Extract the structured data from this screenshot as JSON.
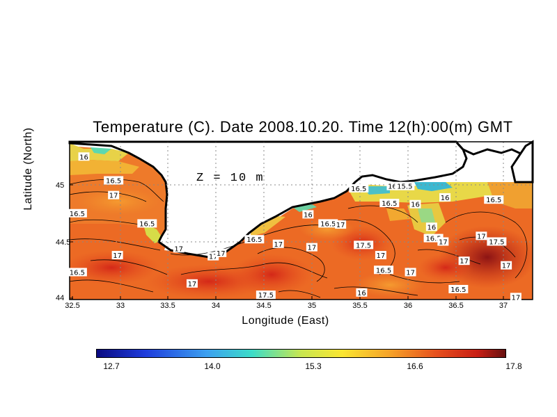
{
  "title": "Temperature (C). Date 2008.10.20. Time 12(h):00(m) GMT",
  "depth_label": "Z = 10 m",
  "xlabel": "Longitude (East)",
  "ylabel": "Latitude (North)",
  "colorbar": {
    "colors": [
      "#0a0a80",
      "#1e3cdc",
      "#3ca0f0",
      "#3cdcc8",
      "#c8e650",
      "#fae632",
      "#f5a028",
      "#e6501e",
      "#c81e14",
      "#641010"
    ],
    "labels": [
      "12.7",
      "14.0",
      "15.3",
      "16.6",
      "17.8"
    ]
  },
  "chart_data": {
    "type": "heatmap",
    "title": "Temperature (C). Date 2008.10.20. Time 12(h):00(m) GMT",
    "xlabel": "Longitude (East)",
    "ylabel": "Latitude (North)",
    "xlim": [
      32.5,
      37.25
    ],
    "ylim": [
      44.0,
      45.35
    ],
    "xticks": [
      "32.5",
      "33",
      "33.5",
      "34",
      "34.5",
      "35",
      "35.5",
      "36",
      "36.5",
      "37"
    ],
    "yticks": [
      "44",
      "44.5",
      "45"
    ],
    "grid": true,
    "colorbar_range": [
      12.7,
      17.8
    ],
    "colorbar_ticks": [
      12.7,
      14.0,
      15.3,
      16.6,
      17.8
    ],
    "contour_labels": [
      {
        "lon": 32.62,
        "lat": 45.25,
        "text": "16"
      },
      {
        "lon": 32.93,
        "lat": 45.04,
        "text": "16.5"
      },
      {
        "lon": 32.93,
        "lat": 44.91,
        "text": "17"
      },
      {
        "lon": 32.55,
        "lat": 44.75,
        "text": "16.5"
      },
      {
        "lon": 33.28,
        "lat": 44.66,
        "text": "16.5"
      },
      {
        "lon": 32.97,
        "lat": 44.38,
        "text": "17"
      },
      {
        "lon": 32.55,
        "lat": 44.23,
        "text": "16.5"
      },
      {
        "lon": 33.61,
        "lat": 44.44,
        "text": "17"
      },
      {
        "lon": 33.97,
        "lat": 44.37,
        "text": "17"
      },
      {
        "lon": 34.05,
        "lat": 44.4,
        "text": "17"
      },
      {
        "lon": 33.75,
        "lat": 44.13,
        "text": "17"
      },
      {
        "lon": 34.4,
        "lat": 44.52,
        "text": "16.5"
      },
      {
        "lon": 34.65,
        "lat": 44.48,
        "text": "17"
      },
      {
        "lon": 34.52,
        "lat": 44.03,
        "text": "17.5"
      },
      {
        "lon": 34.96,
        "lat": 44.74,
        "text": "16"
      },
      {
        "lon": 35.17,
        "lat": 44.66,
        "text": "16.5"
      },
      {
        "lon": 35.3,
        "lat": 44.65,
        "text": "17"
      },
      {
        "lon": 35.0,
        "lat": 44.45,
        "text": "17"
      },
      {
        "lon": 35.49,
        "lat": 44.97,
        "text": "16.5"
      },
      {
        "lon": 35.84,
        "lat": 44.99,
        "text": "16"
      },
      {
        "lon": 35.97,
        "lat": 44.99,
        "text": "15.5"
      },
      {
        "lon": 35.81,
        "lat": 44.84,
        "text": "16.5"
      },
      {
        "lon": 36.08,
        "lat": 44.83,
        "text": "16"
      },
      {
        "lon": 35.54,
        "lat": 44.47,
        "text": "17.5"
      },
      {
        "lon": 35.72,
        "lat": 44.38,
        "text": "17"
      },
      {
        "lon": 35.75,
        "lat": 44.25,
        "text": "16.5"
      },
      {
        "lon": 35.52,
        "lat": 44.05,
        "text": "16"
      },
      {
        "lon": 36.39,
        "lat": 44.89,
        "text": "16"
      },
      {
        "lon": 36.25,
        "lat": 44.63,
        "text": "16"
      },
      {
        "lon": 36.27,
        "lat": 44.53,
        "text": "16.5"
      },
      {
        "lon": 36.37,
        "lat": 44.5,
        "text": "17"
      },
      {
        "lon": 36.59,
        "lat": 44.33,
        "text": "17"
      },
      {
        "lon": 36.03,
        "lat": 44.23,
        "text": "17"
      },
      {
        "lon": 36.53,
        "lat": 44.08,
        "text": "16.5"
      },
      {
        "lon": 36.9,
        "lat": 44.87,
        "text": "16.5"
      },
      {
        "lon": 36.77,
        "lat": 44.55,
        "text": "17"
      },
      {
        "lon": 36.93,
        "lat": 44.5,
        "text": "17.5"
      },
      {
        "lon": 37.03,
        "lat": 44.29,
        "text": "17"
      },
      {
        "lon": 37.13,
        "lat": 44.01,
        "text": "17"
      }
    ]
  }
}
